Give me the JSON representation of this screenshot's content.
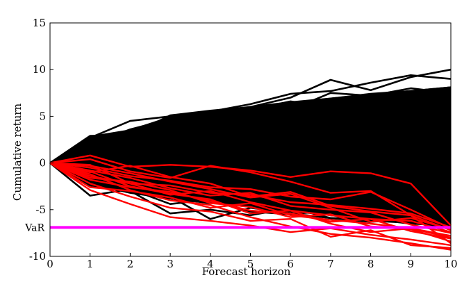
{
  "chart_data": {
    "type": "line",
    "title": "",
    "xlabel": "Forecast horizon",
    "ylabel": "Cumulative return",
    "xlim": [
      0,
      10
    ],
    "ylim": [
      -10,
      15
    ],
    "x_ticks": [
      "0",
      "1",
      "2",
      "3",
      "4",
      "5",
      "6",
      "7",
      "8",
      "9",
      "10"
    ],
    "y_ticks": [
      "-10",
      "-5",
      "0",
      "5",
      "10",
      "15"
    ],
    "grid": false,
    "legend": "none",
    "colors": {
      "paths": "#000000",
      "tail_paths": "#ff0000",
      "var_line": "#ff00ff"
    },
    "x": [
      0,
      1,
      2,
      3,
      4,
      5,
      6,
      7,
      8,
      9,
      10
    ],
    "envelope": {
      "upper": [
        0,
        2.9,
        3.6,
        5.0,
        5.5,
        6.1,
        6.6,
        7.0,
        7.4,
        7.8,
        8.2
      ],
      "lower": [
        0,
        -2.4,
        -3.2,
        -3.9,
        -4.3,
        -4.8,
        -5.3,
        -5.6,
        -6.0,
        -6.4,
        -7.0
      ]
    },
    "black_paths": [
      [
        0,
        2.9,
        3.0,
        5.1,
        5.6,
        6.0,
        7.0,
        8.9,
        7.8,
        9.2,
        10.0
      ],
      [
        0,
        2.7,
        4.5,
        5.0,
        5.5,
        6.3,
        7.4,
        7.7,
        8.6,
        9.4,
        9.0
      ],
      [
        0,
        2.0,
        3.6,
        4.7,
        5.4,
        5.8,
        6.4,
        6.9,
        7.4,
        7.7,
        8.1
      ],
      [
        0,
        1.8,
        2.5,
        3.6,
        4.3,
        5.4,
        5.7,
        7.5,
        7.2,
        8.0,
        7.5
      ],
      [
        0,
        2.3,
        2.8,
        4.5,
        4.6,
        5.7,
        6.6,
        6.0,
        7.1,
        6.5,
        6.9
      ],
      [
        0,
        1.5,
        3.2,
        3.1,
        4.2,
        4.8,
        5.2,
        6.2,
        6.4,
        7.1,
        7.0
      ],
      [
        0,
        1.0,
        2.0,
        2.7,
        3.5,
        3.8,
        4.4,
        5.1,
        5.4,
        5.9,
        6.2
      ],
      [
        0,
        0.5,
        1.2,
        1.8,
        2.6,
        3.0,
        3.6,
        4.0,
        4.8,
        5.2,
        5.5
      ],
      [
        0,
        -2.4,
        -3.0,
        -3.5,
        -4.0,
        -4.6,
        -5.0,
        -5.3,
        -5.8,
        -6.1,
        -6.6
      ],
      [
        0,
        -2.2,
        -3.2,
        -3.8,
        -4.3,
        -4.1,
        -4.9,
        -5.6,
        -5.9,
        -6.3,
        -6.8
      ],
      [
        0,
        -3.5,
        -2.8,
        -4.4,
        -3.9,
        -5.2,
        -5.5,
        -5.1,
        -6.2,
        -6.4,
        -6.9
      ],
      [
        0,
        -1.9,
        -2.5,
        -3.6,
        -6.0,
        -4.8,
        -5.4,
        -5.9,
        -6.0,
        -6.5,
        -6.7
      ],
      [
        0,
        -1.4,
        -3.0,
        -5.4,
        -5.0,
        -5.6,
        -4.8,
        -5.9,
        -6.3,
        -6.0,
        -6.9
      ]
    ],
    "red_paths": [
      [
        0,
        0.8,
        -0.4,
        -0.2,
        -0.4,
        -0.8,
        -1.5,
        -0.9,
        -1.1,
        -2.2,
        -6.7
      ],
      [
        0,
        0.4,
        -0.9,
        -1.6,
        -0.3,
        -1.0,
        -2.0,
        -3.2,
        -3.0,
        -5.6,
        -8.6
      ],
      [
        0,
        -0.5,
        -1.4,
        -1.9,
        -2.6,
        -2.8,
        -3.6,
        -3.9,
        -3.1,
        -5.0,
        -7.0
      ],
      [
        0,
        -0.2,
        -2.2,
        -2.4,
        -3.2,
        -3.4,
        -4.2,
        -4.5,
        -4.9,
        -5.4,
        -6.9
      ],
      [
        0,
        -1.0,
        -0.3,
        -1.5,
        -2.2,
        -3.6,
        -3.1,
        -4.6,
        -5.2,
        -5.6,
        -7.2
      ],
      [
        0,
        -1.4,
        -2.2,
        -3.4,
        -3.0,
        -4.2,
        -5.1,
        -5.6,
        -6.0,
        -6.2,
        -7.4
      ],
      [
        0,
        -2.6,
        -3.0,
        -3.7,
        -4.8,
        -4.3,
        -5.6,
        -6.1,
        -6.5,
        -7.0,
        -7.8
      ],
      [
        0,
        -0.8,
        -1.6,
        -2.7,
        -3.5,
        -3.2,
        -4.6,
        -5.0,
        -5.3,
        -6.6,
        -7.5
      ],
      [
        0,
        -1.8,
        -2.6,
        -3.1,
        -4.1,
        -5.1,
        -5.4,
        -6.3,
        -6.0,
        -7.3,
        -8.1
      ],
      [
        0,
        -2.9,
        -4.4,
        -5.8,
        -6.2,
        -6.7,
        -7.4,
        -7.0,
        -7.7,
        -8.2,
        -8.8
      ],
      [
        0,
        -1.2,
        -2.9,
        -4.0,
        -4.5,
        -5.8,
        -6.8,
        -7.6,
        -8.0,
        -8.6,
        -9.3
      ],
      [
        0,
        -2.2,
        -3.6,
        -4.8,
        -5.2,
        -6.2,
        -6.0,
        -7.9,
        -7.2,
        -8.8,
        -9.1
      ],
      [
        0,
        -0.3,
        -1.1,
        -2.0,
        -2.8,
        -3.7,
        -3.3,
        -4.8,
        -6.3,
        -5.9,
        -7.1
      ],
      [
        0,
        -1.6,
        -2.0,
        -2.9,
        -4.3,
        -4.7,
        -5.8,
        -5.5,
        -6.8,
        -7.1,
        -8.4
      ],
      [
        0,
        -0.9,
        -2.5,
        -3.3,
        -3.9,
        -5.4,
        -5.1,
        -6.5,
        -7.4,
        -7.0,
        -8.0
      ]
    ],
    "var": {
      "label": "VaR",
      "value": -6.9
    }
  }
}
